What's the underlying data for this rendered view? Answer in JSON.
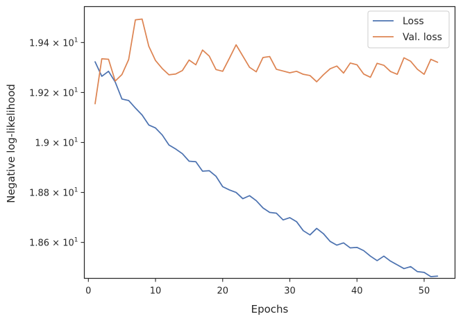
{
  "chart_data": {
    "type": "line",
    "xlabel": "Epochs",
    "ylabel": "Negative log-likelihood",
    "xlim": [
      -0.6,
      54.6
    ],
    "ylim": [
      18.456,
      19.544
    ],
    "x_ticks": [
      {
        "value": 0,
        "label": "0"
      },
      {
        "value": 10,
        "label": "10"
      },
      {
        "value": 20,
        "label": "20"
      },
      {
        "value": 30,
        "label": "30"
      },
      {
        "value": 40,
        "label": "40"
      },
      {
        "value": 50,
        "label": "50"
      }
    ],
    "y_ticks": [
      {
        "value": 18.6,
        "mantissa": "1.86",
        "exponent": "1"
      },
      {
        "value": 18.8,
        "mantissa": "1.88",
        "exponent": "1"
      },
      {
        "value": 19.0,
        "mantissa": "1.9",
        "exponent": "1"
      },
      {
        "value": 19.2,
        "mantissa": "1.92",
        "exponent": "1"
      },
      {
        "value": 19.4,
        "mantissa": "1.94",
        "exponent": "1"
      }
    ],
    "grid": false,
    "legend_position": "top-right",
    "x": [
      1,
      2,
      3,
      4,
      5,
      6,
      7,
      8,
      9,
      10,
      11,
      12,
      13,
      14,
      15,
      16,
      17,
      18,
      19,
      20,
      21,
      22,
      23,
      24,
      25,
      26,
      27,
      28,
      29,
      30,
      31,
      32,
      33,
      34,
      35,
      36,
      37,
      38,
      39,
      40,
      41,
      42,
      43,
      44,
      45,
      46,
      47,
      48,
      49,
      50,
      51,
      52
    ],
    "series": [
      {
        "name": "Loss",
        "color": "#4c72b0",
        "values": [
          19.323,
          19.265,
          19.285,
          19.242,
          19.174,
          19.168,
          19.138,
          19.11,
          19.07,
          19.058,
          19.03,
          18.99,
          18.974,
          18.955,
          18.925,
          18.923,
          18.885,
          18.887,
          18.865,
          18.823,
          18.81,
          18.8,
          18.775,
          18.787,
          18.767,
          18.738,
          18.72,
          18.717,
          18.69,
          18.699,
          18.683,
          18.647,
          18.63,
          18.656,
          18.635,
          18.604,
          18.589,
          18.598,
          18.578,
          18.58,
          18.567,
          18.545,
          18.527,
          18.545,
          18.525,
          18.51,
          18.495,
          18.503,
          18.483,
          18.48,
          18.463,
          18.465
        ]
      },
      {
        "name": "Val. loss",
        "color": "#dd8452",
        "values": [
          19.155,
          19.335,
          19.333,
          19.246,
          19.272,
          19.332,
          19.491,
          19.494,
          19.385,
          19.328,
          19.296,
          19.271,
          19.274,
          19.288,
          19.33,
          19.311,
          19.37,
          19.346,
          19.292,
          19.285,
          19.337,
          19.391,
          19.346,
          19.301,
          19.283,
          19.34,
          19.344,
          19.293,
          19.286,
          19.279,
          19.285,
          19.273,
          19.268,
          19.243,
          19.271,
          19.295,
          19.306,
          19.278,
          19.318,
          19.311,
          19.274,
          19.261,
          19.317,
          19.309,
          19.284,
          19.273,
          19.339,
          19.325,
          19.293,
          19.273,
          19.333,
          19.321
        ]
      }
    ]
  }
}
